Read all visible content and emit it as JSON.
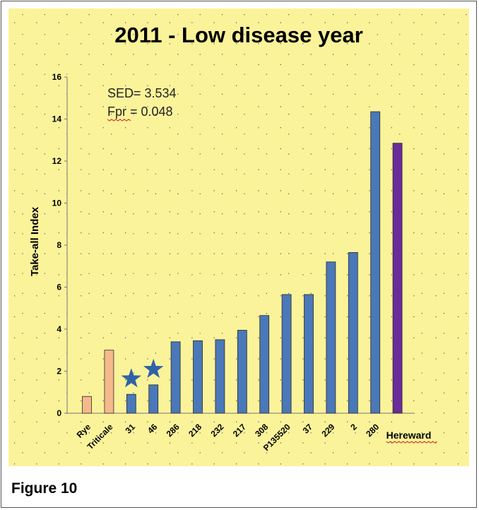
{
  "caption": "Figure 10",
  "chart_data": {
    "type": "bar",
    "title": "2011 - Low disease year",
    "ylabel": "Take-all Index",
    "xlabel": "",
    "ylim": [
      0,
      16
    ],
    "yticks": [
      0,
      2,
      4,
      6,
      8,
      10,
      12,
      14,
      16
    ],
    "grid": true,
    "categories": [
      "Rye",
      "Triticale",
      "31",
      "46",
      "286",
      "218",
      "232",
      "217",
      "308",
      "P135520",
      "37",
      "229",
      "2",
      "280",
      "Hereward"
    ],
    "values": [
      0.8,
      3.0,
      0.9,
      1.35,
      3.4,
      3.45,
      3.5,
      3.95,
      4.65,
      5.65,
      5.65,
      7.2,
      7.65,
      14.35,
      12.85
    ],
    "bar_colors": [
      "#f5b98c",
      "#f5b98c",
      "#4a78b8",
      "#4a78b8",
      "#4a78b8",
      "#4a78b8",
      "#4a78b8",
      "#4a78b8",
      "#4a78b8",
      "#4a78b8",
      "#4a78b8",
      "#4a78b8",
      "#4a78b8",
      "#4a78b8",
      "#6a2c9a"
    ],
    "starred_categories": [
      "31",
      "46"
    ],
    "annotations": [
      "SED= 3.534",
      "Fpr =  0.048"
    ],
    "panel_color": "#fbf39a"
  }
}
